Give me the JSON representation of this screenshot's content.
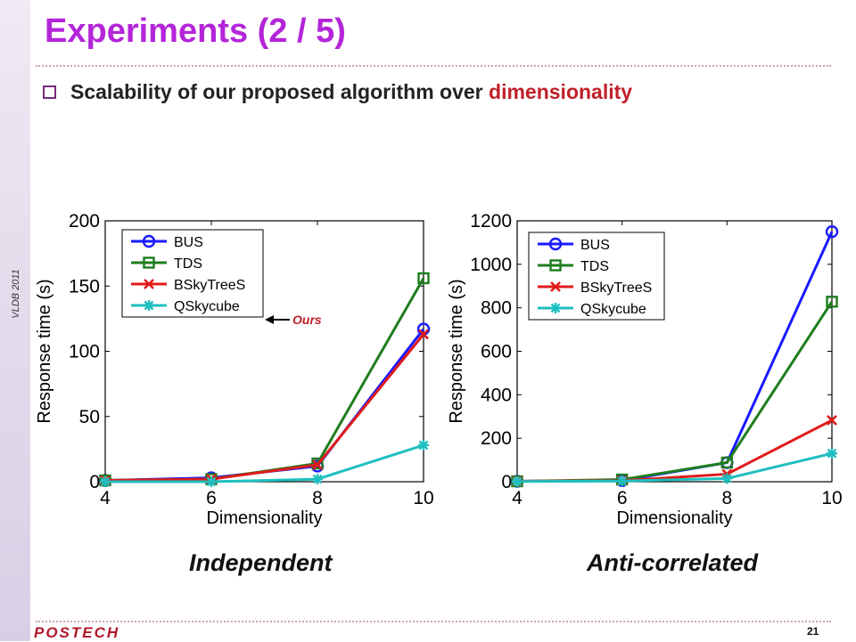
{
  "slide": {
    "title": "Experiments (2 / 5)",
    "bullet_prefix": "Scalability of our proposed algorithm over ",
    "bullet_highlight": "dimensionality",
    "side_label": "VLDB 2011",
    "footer_logo": "POSTECH",
    "page_number": "21"
  },
  "colors": {
    "title": "#b425d9",
    "highlight": "#c0202a",
    "BUS": "#1a1aff",
    "TDS": "#1e7d1e",
    "BSkyTreeS": "#e01b1b",
    "QSkycube": "#1fbfbf"
  },
  "chart_data": [
    {
      "type": "line",
      "caption": "Independent",
      "xlabel": "Dimensionality",
      "ylabel": "Response time (s)",
      "x": [
        4,
        6,
        8,
        10
      ],
      "xlim": [
        4,
        10
      ],
      "ylim": [
        0,
        200
      ],
      "yticks": [
        0,
        50,
        100,
        150,
        200
      ],
      "legend_position": "top-left",
      "annotation": "Ours",
      "series": [
        {
          "name": "BUS",
          "marker": "circle",
          "values": [
            1,
            3,
            12,
            117
          ]
        },
        {
          "name": "TDS",
          "marker": "square",
          "values": [
            1,
            2,
            14,
            156
          ]
        },
        {
          "name": "BSkyTreeS",
          "marker": "x",
          "values": [
            1,
            2,
            13,
            113
          ]
        },
        {
          "name": "QSkycube",
          "marker": "star",
          "values": [
            0,
            0,
            2,
            28
          ]
        }
      ]
    },
    {
      "type": "line",
      "caption": "Anti-correlated",
      "xlabel": "Dimensionality",
      "ylabel": "Response time (s)",
      "x": [
        4,
        6,
        8,
        10
      ],
      "xlim": [
        4,
        10
      ],
      "ylim": [
        0,
        1200
      ],
      "yticks": [
        0,
        200,
        400,
        600,
        800,
        1000,
        1200
      ],
      "legend_position": "top-left",
      "series": [
        {
          "name": "BUS",
          "marker": "circle",
          "values": [
            2,
            5,
            88,
            1150
          ]
        },
        {
          "name": "TDS",
          "marker": "square",
          "values": [
            2,
            10,
            88,
            828
          ]
        },
        {
          "name": "BSkyTreeS",
          "marker": "x",
          "values": [
            2,
            5,
            35,
            283
          ]
        },
        {
          "name": "QSkycube",
          "marker": "star",
          "values": [
            1,
            3,
            15,
            130
          ]
        }
      ]
    }
  ]
}
